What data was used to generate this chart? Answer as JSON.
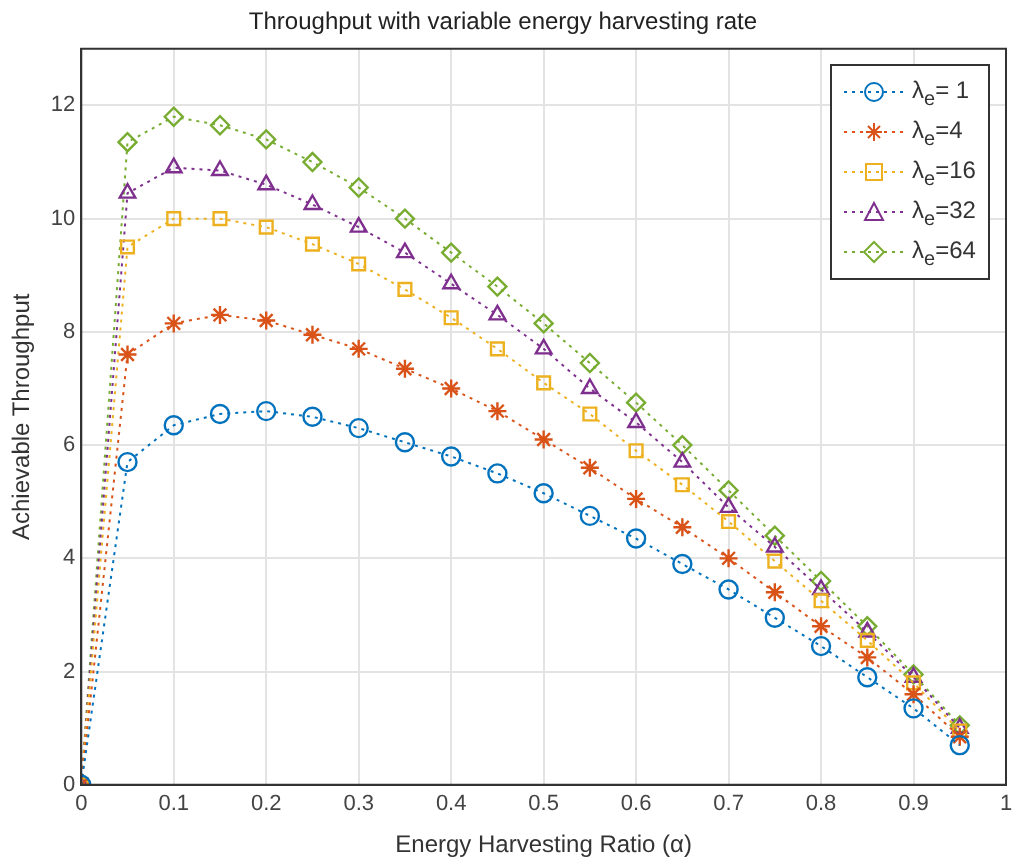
{
  "chart_data": {
    "type": "line",
    "title": "Throughput with variable energy harvesting rate",
    "xlabel": "Energy Harvesting Ratio (α)",
    "ylabel": "Achievable Throughput",
    "x": [
      0,
      0.05,
      0.1,
      0.15,
      0.2,
      0.25,
      0.3,
      0.35,
      0.4,
      0.45,
      0.5,
      0.55,
      0.6,
      0.65,
      0.7,
      0.75,
      0.8,
      0.85,
      0.9,
      0.95
    ],
    "series": [
      {
        "name": "λ$_{e}$= 1",
        "color": "#0072bd",
        "marker": "circle",
        "values": [
          0,
          5.7,
          6.35,
          6.55,
          6.6,
          6.5,
          6.3,
          6.05,
          5.8,
          5.5,
          5.15,
          4.75,
          4.35,
          3.9,
          3.45,
          2.95,
          2.45,
          1.9,
          1.35,
          0.7
        ]
      },
      {
        "name": "λ$_{e}$=4",
        "color": "#d95319",
        "marker": "cross",
        "values": [
          0,
          7.6,
          8.15,
          8.3,
          8.2,
          7.95,
          7.7,
          7.35,
          7.0,
          6.6,
          6.1,
          5.6,
          5.05,
          4.55,
          4.0,
          3.4,
          2.8,
          2.25,
          1.6,
          0.85
        ]
      },
      {
        "name": "λ$_{e}$=16",
        "color": "#edb120",
        "marker": "square",
        "values": [
          0,
          9.5,
          10.0,
          10.0,
          9.85,
          9.55,
          9.2,
          8.75,
          8.25,
          7.7,
          7.1,
          6.55,
          5.9,
          5.3,
          4.65,
          3.95,
          3.25,
          2.55,
          1.8,
          0.95
        ]
      },
      {
        "name": "λ$_{e}$=32",
        "color": "#7e2f8e",
        "marker": "triangle",
        "values": [
          0,
          10.45,
          10.9,
          10.85,
          10.6,
          10.25,
          9.85,
          9.4,
          8.85,
          8.3,
          7.7,
          7.0,
          6.4,
          5.7,
          4.9,
          4.2,
          3.45,
          2.7,
          1.9,
          1.0
        ]
      },
      {
        "name": "λ$_{e}$=64",
        "color": "#77ac30",
        "marker": "diamond",
        "values": [
          0,
          11.35,
          11.8,
          11.65,
          11.4,
          11.0,
          10.55,
          10.0,
          9.4,
          8.8,
          8.15,
          7.45,
          6.75,
          6.0,
          5.2,
          4.4,
          3.6,
          2.8,
          1.95,
          1.05
        ]
      }
    ],
    "xlim": [
      0,
      1
    ],
    "xticks": [
      0,
      0.1,
      0.2,
      0.3,
      0.4,
      0.5,
      0.6,
      0.7,
      0.8,
      0.9,
      1
    ],
    "ylim": [
      0,
      13
    ],
    "yticks": [
      0,
      2,
      4,
      6,
      8,
      10,
      12
    ],
    "grid": true,
    "legend": "top right",
    "line_style": "dotted"
  }
}
